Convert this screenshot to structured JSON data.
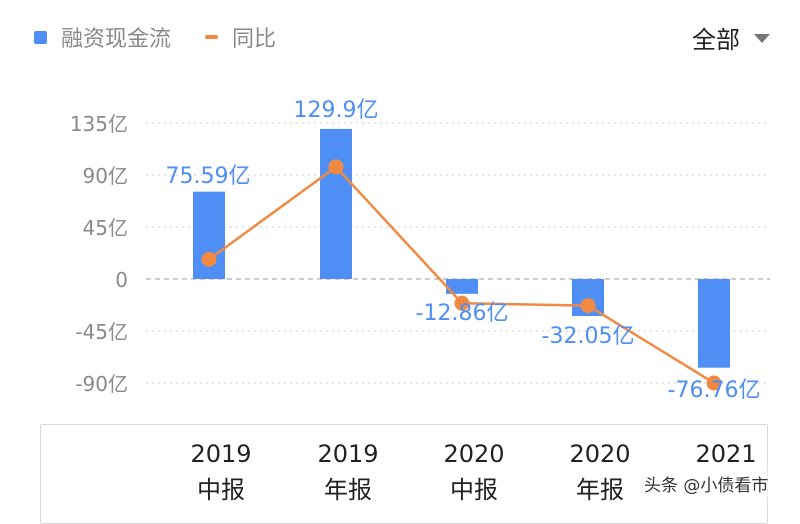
{
  "legend": {
    "bar_label": "融资现金流",
    "line_label": "同比"
  },
  "filter": {
    "label": "全部"
  },
  "watermark": "头条 @小债看市",
  "colors": {
    "bar": "#4f8ef5",
    "line": "#f08a43",
    "value_label": "#4f8ef5",
    "grid": "#cfcfcf"
  },
  "chart_data": {
    "type": "bar",
    "categories": [
      [
        "2019",
        "中报"
      ],
      [
        "2019",
        "年报"
      ],
      [
        "2020",
        "中报"
      ],
      [
        "2020",
        "年报"
      ],
      [
        "2021",
        ""
      ]
    ],
    "y_ticks": [
      "135亿",
      "90亿",
      "45亿",
      "0",
      "-45亿",
      "-90亿"
    ],
    "y_tick_values": [
      135,
      90,
      45,
      0,
      -45,
      -90
    ],
    "ylim": [
      -90,
      135
    ],
    "series": [
      {
        "name": "融资现金流",
        "type": "bar",
        "values": [
          75.59,
          129.9,
          -12.86,
          -32.05,
          -76.76
        ],
        "labels": [
          "75.59亿",
          "129.9亿",
          "-12.86亿",
          "-32.05亿",
          "-76.76亿"
        ]
      },
      {
        "name": "同比",
        "type": "line",
        "values": [
          17,
          97,
          -21,
          -23,
          -90
        ]
      }
    ],
    "grid": true,
    "legend_position": "top-left"
  }
}
